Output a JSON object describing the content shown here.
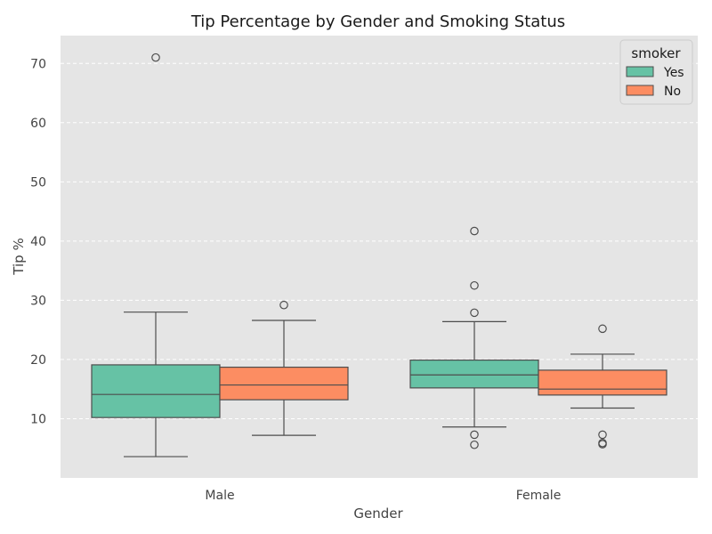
{
  "chart_data": {
    "type": "boxplot",
    "title": "Tip Percentage by Gender and Smoking Status",
    "xlabel": "Gender",
    "ylabel": "Tip %",
    "categories": [
      "Male",
      "Female"
    ],
    "ylim": [
      0,
      74.7
    ],
    "yticks": [
      10,
      20,
      30,
      40,
      50,
      60,
      70
    ],
    "grid": true,
    "legend": {
      "title": "smoker",
      "placement": "top-right",
      "entries": [
        "Yes",
        "No"
      ]
    },
    "series": [
      {
        "name": "Yes",
        "color": "#66c2a5",
        "boxes": [
          {
            "category": "Male",
            "q1": 10.2,
            "median": 14.1,
            "q3": 19.1,
            "whisker_low": 3.6,
            "whisker_high": 28.0,
            "outliers": [
              71.0
            ]
          },
          {
            "category": "Female",
            "q1": 15.2,
            "median": 17.4,
            "q3": 19.9,
            "whisker_low": 8.6,
            "whisker_high": 26.4,
            "outliers": [
              41.7,
              32.5,
              27.9,
              7.3,
              5.6
            ]
          }
        ]
      },
      {
        "name": "No",
        "color": "#fc8d62",
        "boxes": [
          {
            "category": "Male",
            "q1": 13.2,
            "median": 15.7,
            "q3": 18.7,
            "whisker_low": 7.2,
            "whisker_high": 26.6,
            "outliers": [
              29.2
            ]
          },
          {
            "category": "Female",
            "q1": 14.0,
            "median": 15.0,
            "q3": 18.2,
            "whisker_low": 11.8,
            "whisker_high": 20.9,
            "outliers": [
              25.2,
              7.3,
              5.9,
              5.7
            ]
          }
        ]
      }
    ]
  }
}
